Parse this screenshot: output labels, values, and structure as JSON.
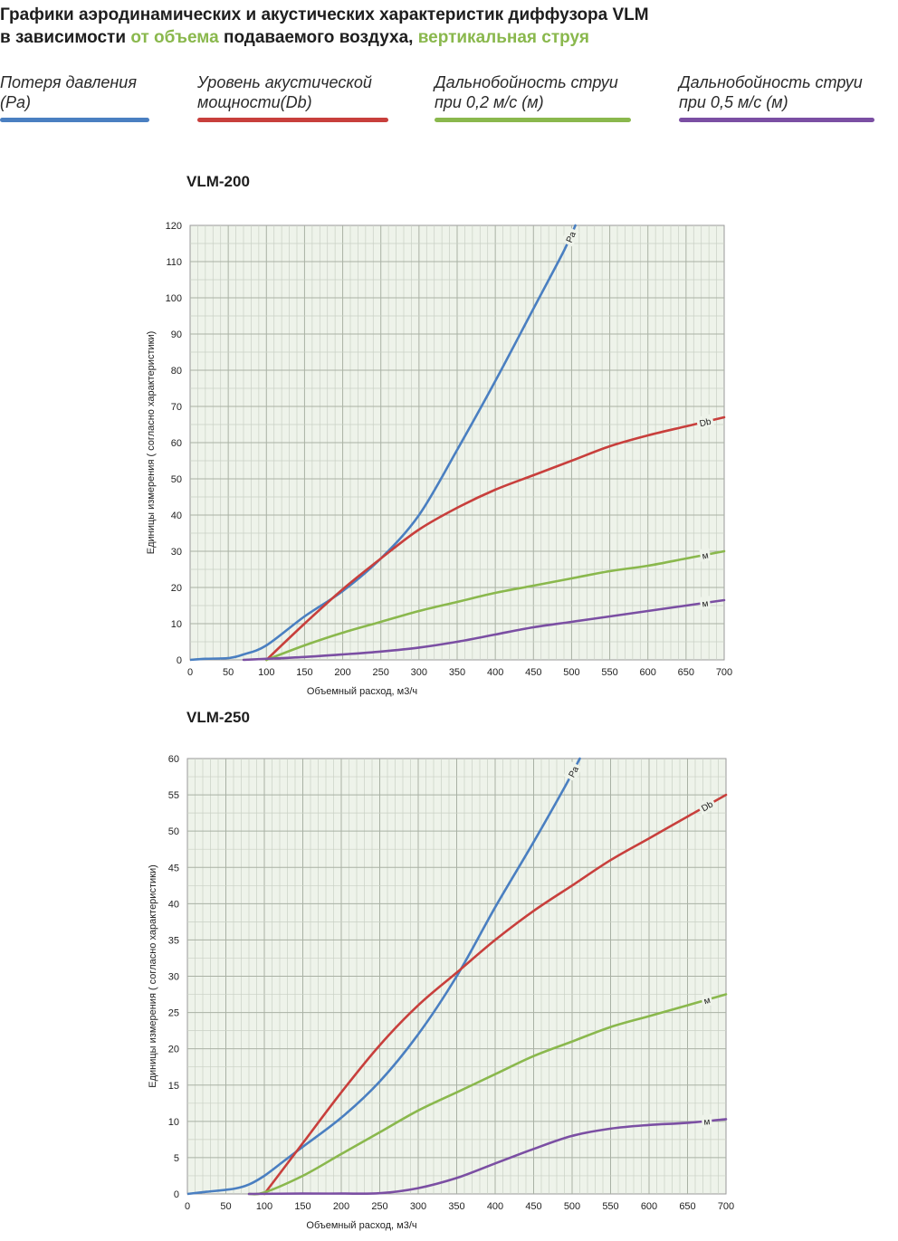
{
  "header": {
    "line1": "Графики аэродинамических и акустических характеристик  диффузора VLM",
    "line2_a": "в зависимости ",
    "line2_b": "от объема",
    "line2_c": " подаваемого воздуха, ",
    "line2_d": "вертикальная струя",
    "accent_color": "#8ab84d"
  },
  "legend": [
    {
      "text": "Потеря давления\n(Pa)",
      "color": "#4a7fc1"
    },
    {
      "text": "Уровень акустической\nмощности(Db)",
      "color": "#c83f3c"
    },
    {
      "text": "Дальнобойность струи\nпри 0,2 м/с (м)",
      "color": "#8ab84d"
    },
    {
      "text": "Дальнобойность струи\nпри 0,5 м/с (м)",
      "color": "#7b4fa3"
    }
  ],
  "chart_data": [
    {
      "type": "line",
      "title": "VLM-200",
      "xlabel": "Объемный расход, м3/ч",
      "ylabel": "Единицы измерения ( согласно характеристики)",
      "xlim": [
        0,
        700
      ],
      "ylim": [
        0,
        120
      ],
      "xticks": [
        0,
        50,
        100,
        150,
        200,
        250,
        300,
        350,
        400,
        450,
        500,
        550,
        600,
        650,
        700
      ],
      "yticks": [
        0,
        10,
        20,
        30,
        40,
        50,
        60,
        70,
        80,
        90,
        100,
        110,
        120
      ],
      "grid": true,
      "background": "#eef3ea",
      "series": [
        {
          "label": "Pa",
          "color": "#4a7fc1",
          "points": [
            [
              0,
              0
            ],
            [
              20,
              0.3
            ],
            [
              50,
              0.5
            ],
            [
              70,
              1.5
            ],
            [
              100,
              4
            ],
            [
              150,
              12
            ],
            [
              200,
              19
            ],
            [
              250,
              28
            ],
            [
              300,
              40
            ],
            [
              350,
              58
            ],
            [
              400,
              77
            ],
            [
              450,
              97
            ],
            [
              490,
              113
            ],
            [
              505,
              120
            ]
          ]
        },
        {
          "label": "Db",
          "color": "#c83f3c",
          "points": [
            [
              100,
              0
            ],
            [
              150,
              10
            ],
            [
              200,
              19.5
            ],
            [
              250,
              28
            ],
            [
              300,
              36
            ],
            [
              350,
              42
            ],
            [
              400,
              47
            ],
            [
              450,
              51
            ],
            [
              500,
              55
            ],
            [
              550,
              59
            ],
            [
              600,
              62
            ],
            [
              650,
              64.5
            ],
            [
              700,
              67
            ]
          ]
        },
        {
          "label": "м",
          "color": "#8ab84d",
          "points": [
            [
              100,
              0
            ],
            [
              150,
              4
            ],
            [
              200,
              7.5
            ],
            [
              250,
              10.5
            ],
            [
              300,
              13.5
            ],
            [
              350,
              16
            ],
            [
              400,
              18.5
            ],
            [
              450,
              20.5
            ],
            [
              500,
              22.5
            ],
            [
              550,
              24.5
            ],
            [
              600,
              26
            ],
            [
              650,
              28
            ],
            [
              700,
              30
            ]
          ]
        },
        {
          "label": "м",
          "color": "#7b4fa3",
          "points": [
            [
              70,
              0
            ],
            [
              100,
              0.3
            ],
            [
              150,
              0.8
            ],
            [
              200,
              1.5
            ],
            [
              250,
              2.3
            ],
            [
              300,
              3.4
            ],
            [
              350,
              5
            ],
            [
              400,
              7
            ],
            [
              450,
              9
            ],
            [
              500,
              10.5
            ],
            [
              550,
              12
            ],
            [
              600,
              13.5
            ],
            [
              650,
              15
            ],
            [
              700,
              16.5
            ]
          ]
        }
      ]
    },
    {
      "type": "line",
      "title": "VLM-250",
      "xlabel": "Объемный расход, м3/ч",
      "ylabel": "Единицы измерения ( согласно характеристики)",
      "xlim": [
        0,
        700
      ],
      "ylim": [
        0,
        60
      ],
      "xticks": [
        0,
        50,
        100,
        150,
        200,
        250,
        300,
        350,
        400,
        450,
        500,
        550,
        600,
        650,
        700
      ],
      "yticks": [
        0,
        5,
        10,
        15,
        20,
        25,
        30,
        35,
        40,
        45,
        50,
        55,
        60
      ],
      "grid": true,
      "background": "#eef3ea",
      "series": [
        {
          "label": "Pa",
          "color": "#4a7fc1",
          "points": [
            [
              0,
              0
            ],
            [
              25,
              0.3
            ],
            [
              60,
              0.7
            ],
            [
              80,
              1.3
            ],
            [
              100,
              2.5
            ],
            [
              125,
              4.5
            ],
            [
              150,
              6.5
            ],
            [
              200,
              10.5
            ],
            [
              250,
              15.5
            ],
            [
              300,
              22
            ],
            [
              350,
              30
            ],
            [
              400,
              39.5
            ],
            [
              450,
              48.5
            ],
            [
              490,
              56
            ],
            [
              510,
              60
            ]
          ]
        },
        {
          "label": "Db",
          "color": "#c83f3c",
          "points": [
            [
              100,
              0
            ],
            [
              150,
              7
            ],
            [
              200,
              14
            ],
            [
              250,
              20.5
            ],
            [
              300,
              26
            ],
            [
              350,
              30.5
            ],
            [
              400,
              35
            ],
            [
              450,
              39
            ],
            [
              500,
              42.5
            ],
            [
              550,
              46
            ],
            [
              600,
              49
            ],
            [
              650,
              52
            ],
            [
              700,
              55
            ]
          ]
        },
        {
          "label": "м",
          "color": "#8ab84d",
          "points": [
            [
              80,
              0
            ],
            [
              100,
              0.2
            ],
            [
              150,
              2.5
            ],
            [
              200,
              5.5
            ],
            [
              250,
              8.5
            ],
            [
              300,
              11.5
            ],
            [
              350,
              14
            ],
            [
              400,
              16.5
            ],
            [
              450,
              19
            ],
            [
              500,
              21
            ],
            [
              550,
              23
            ],
            [
              600,
              24.5
            ],
            [
              650,
              26
            ],
            [
              700,
              27.5
            ]
          ]
        },
        {
          "label": "м",
          "color": "#7b4fa3",
          "points": [
            [
              80,
              0
            ],
            [
              150,
              0.05
            ],
            [
              200,
              0.05
            ],
            [
              250,
              0.1
            ],
            [
              300,
              0.8
            ],
            [
              350,
              2.2
            ],
            [
              400,
              4.2
            ],
            [
              450,
              6.2
            ],
            [
              500,
              8
            ],
            [
              550,
              9
            ],
            [
              600,
              9.5
            ],
            [
              650,
              9.8
            ],
            [
              700,
              10.3
            ]
          ]
        }
      ]
    }
  ]
}
